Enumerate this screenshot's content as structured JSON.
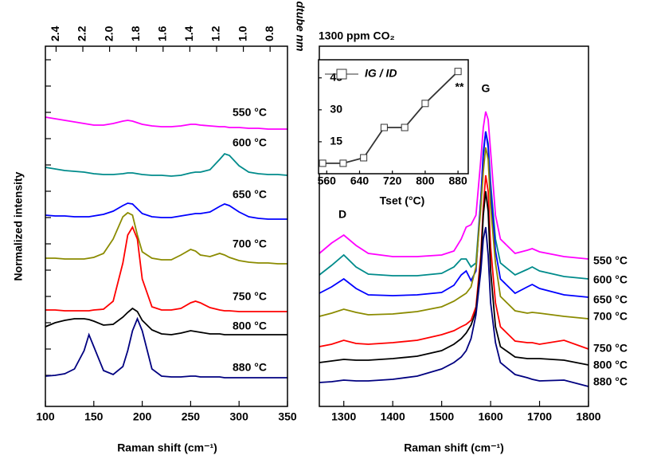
{
  "chart_data": [
    {
      "type": "line",
      "x_label": "Raman shift (cm⁻¹)",
      "y_label": "Normalized intensity",
      "x2_label": "dtube nm",
      "xlim": [
        100,
        350
      ],
      "xticks": [
        100,
        150,
        200,
        250,
        300,
        350
      ],
      "x2lim": [
        2.48,
        0.67
      ],
      "x2ticks": [
        2.4,
        2.2,
        {
          "value": 2,
          "label": "2.0"
        },
        1.8,
        1.6,
        1.4,
        1.2,
        {
          "value": 1,
          "label": "1.0"
        },
        0.8
      ],
      "ylim": [
        0,
        452
      ],
      "yticks": [
        39,
        72,
        105,
        138,
        171,
        204,
        237,
        270,
        303,
        336,
        369,
        402,
        435
      ],
      "ytick_labels": false,
      "x": [
        100,
        110,
        120,
        130,
        140,
        145,
        150,
        160,
        170,
        180,
        185,
        190,
        195,
        200,
        210,
        220,
        230,
        240,
        250,
        255,
        260,
        270,
        280,
        285,
        290,
        300,
        310,
        320,
        330,
        340,
        350
      ],
      "series": [
        {
          "name": "550 °C",
          "color": "#ff00ff",
          "values": [
            363,
            361,
            359,
            357,
            355,
            354,
            353,
            353,
            355,
            358,
            359,
            358,
            356,
            354,
            352,
            351,
            351,
            352,
            354,
            354,
            353,
            352,
            351,
            351,
            350,
            350,
            349,
            349,
            348,
            348,
            348
          ]
        },
        {
          "name": "600 °C",
          "color": "#008b8b",
          "values": [
            300,
            298,
            296,
            295,
            294,
            293,
            292,
            291,
            291,
            292,
            293,
            293,
            292,
            291,
            290,
            290,
            289,
            290,
            293,
            294,
            294,
            297,
            310,
            317,
            315,
            302,
            294,
            292,
            291,
            291,
            290
          ]
        },
        {
          "name": "650 °C",
          "color": "#0000ff",
          "values": [
            240,
            239,
            239,
            238,
            238,
            238,
            239,
            241,
            245,
            252,
            255,
            254,
            248,
            242,
            238,
            237,
            237,
            239,
            241,
            242,
            242,
            244,
            251,
            254,
            252,
            244,
            238,
            236,
            235,
            235,
            235
          ]
        },
        {
          "name": "700 °C",
          "color": "#8b8b00",
          "values": [
            186,
            186,
            185,
            185,
            185,
            186,
            187,
            192,
            210,
            238,
            243,
            240,
            215,
            194,
            186,
            184,
            184,
            190,
            197,
            195,
            190,
            188,
            192,
            190,
            187,
            183,
            181,
            180,
            180,
            179,
            179
          ]
        },
        {
          "name": "750 °C",
          "color": "#ff0000",
          "values": [
            121,
            121,
            120,
            120,
            120,
            120,
            121,
            122,
            132,
            180,
            215,
            225,
            210,
            160,
            125,
            121,
            121,
            123,
            130,
            132,
            130,
            124,
            121,
            120,
            120,
            119,
            119,
            119,
            119,
            119,
            119
          ]
        },
        {
          "name": "800 °C",
          "color": "#000000",
          "values": [
            100,
            105,
            108,
            110,
            110,
            109,
            107,
            102,
            103,
            112,
            118,
            123,
            119,
            108,
            96,
            91,
            90,
            92,
            95,
            94,
            93,
            91,
            91,
            90,
            90,
            90,
            90,
            90,
            90,
            90,
            90
          ]
        },
        {
          "name": "880 °C",
          "color": "#000080",
          "values": [
            38,
            39,
            41,
            47,
            70,
            90,
            75,
            45,
            40,
            50,
            70,
            95,
            110,
            95,
            47,
            38,
            37,
            37,
            38,
            38,
            37,
            37,
            37,
            36,
            36,
            36,
            36,
            36,
            36,
            36,
            36
          ]
        }
      ]
    },
    {
      "type": "line",
      "title": "1300 ppm CO₂",
      "x_label": "Raman shift (cm⁻¹)",
      "annotations": [
        "D",
        "G"
      ],
      "xlim": [
        1250,
        1800
      ],
      "xticks": [
        1300,
        1400,
        1500,
        1600,
        1700,
        1800
      ],
      "ylim": [
        0,
        452
      ],
      "x": [
        1250,
        1275,
        1300,
        1325,
        1350,
        1400,
        1450,
        1500,
        1525,
        1540,
        1550,
        1560,
        1570,
        1580,
        1585,
        1590,
        1595,
        1600,
        1610,
        1620,
        1650,
        1675,
        1685,
        1700,
        1750,
        1800
      ],
      "series": [
        {
          "name": "550 °C",
          "color": "#ff00ff",
          "values": [
            192,
            205,
            215,
            202,
            192,
            188,
            188,
            190,
            195,
            210,
            225,
            228,
            240,
            310,
            350,
            370,
            360,
            320,
            240,
            210,
            192,
            196,
            198,
            194,
            188,
            185
          ]
        },
        {
          "name": "600 °C",
          "color": "#008b8b",
          "values": [
            165,
            177,
            190,
            175,
            166,
            164,
            164,
            167,
            175,
            185,
            185,
            175,
            180,
            260,
            320,
            345,
            330,
            280,
            210,
            180,
            165,
            172,
            175,
            170,
            163,
            160
          ]
        },
        {
          "name": "650 °C",
          "color": "#0000ff",
          "values": [
            142,
            150,
            160,
            148,
            140,
            139,
            140,
            143,
            152,
            165,
            170,
            158,
            170,
            260,
            315,
            345,
            325,
            270,
            195,
            160,
            142,
            150,
            153,
            148,
            140,
            137
          ]
        },
        {
          "name": "700 °C",
          "color": "#8b8b00",
          "values": [
            113,
            117,
            122,
            118,
            115,
            116,
            119,
            125,
            132,
            138,
            142,
            150,
            175,
            250,
            295,
            325,
            310,
            250,
            180,
            138,
            120,
            117,
            118,
            117,
            113,
            110
          ]
        },
        {
          "name": "750 °C",
          "color": "#ff0000",
          "values": [
            75,
            78,
            83,
            79,
            78,
            80,
            83,
            90,
            95,
            100,
            103,
            108,
            125,
            190,
            250,
            290,
            270,
            200,
            130,
            100,
            82,
            80,
            80,
            78,
            83,
            72
          ]
        },
        {
          "name": "800 °C",
          "color": "#000000",
          "values": [
            55,
            57,
            59,
            58,
            58,
            60,
            63,
            70,
            78,
            85,
            92,
            102,
            120,
            180,
            240,
            270,
            245,
            170,
            100,
            75,
            62,
            60,
            60,
            60,
            58,
            52
          ]
        },
        {
          "name": "880 °C",
          "color": "#000080",
          "values": [
            30,
            31,
            33,
            32,
            32,
            34,
            38,
            47,
            55,
            62,
            70,
            85,
            115,
            170,
            210,
            225,
            190,
            130,
            80,
            55,
            40,
            36,
            34,
            32,
            33,
            25
          ]
        }
      ]
    },
    {
      "type": "line",
      "marker": "square",
      "x_label": "Tset (°C)",
      "annotations": [
        "**"
      ],
      "xlim": [
        540,
        905
      ],
      "xticks": [
        560,
        640,
        720,
        800,
        880
      ],
      "ylim": [
        0,
        53.5
      ],
      "yticks": [
        15,
        30,
        45
      ],
      "x": [
        550,
        600,
        650,
        700,
        750,
        800,
        880
      ],
      "series": [
        {
          "name": "IG / ID",
          "color": "#333333",
          "values": [
            4.9,
            4.9,
            7.5,
            21.7,
            21.7,
            33,
            48
          ]
        }
      ]
    }
  ]
}
